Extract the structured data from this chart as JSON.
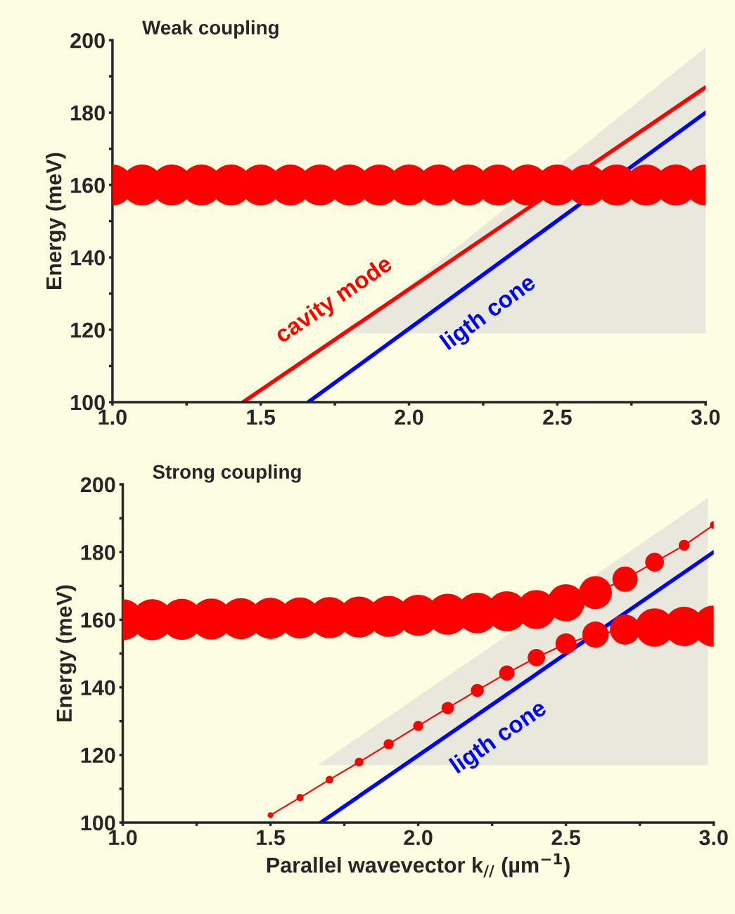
{
  "chart_data": [
    {
      "type": "scatter",
      "title": "Weak coupling",
      "ylabel": "Energy (meV)",
      "xlim": [
        1.0,
        3.0
      ],
      "ylim": [
        100,
        200
      ],
      "xticks": [
        {
          "value": 1.0,
          "label": "1.0"
        },
        {
          "value": 1.25,
          "label": null
        },
        {
          "value": 1.5,
          "label": "1.5"
        },
        {
          "value": 1.75,
          "label": null
        },
        {
          "value": 2.0,
          "label": "2.0"
        },
        {
          "value": 2.25,
          "label": null
        },
        {
          "value": 2.5,
          "label": "2.5"
        },
        {
          "value": 2.75,
          "label": null
        },
        {
          "value": 3.0,
          "label": "3.0"
        }
      ],
      "yticks": [
        100,
        {
          "value": 110,
          "label": null
        },
        120,
        {
          "value": 130,
          "label": null
        },
        140,
        {
          "value": 150,
          "label": null
        },
        160,
        {
          "value": 170,
          "label": null
        },
        180,
        {
          "value": 190,
          "label": null
        },
        200
      ],
      "grid": false,
      "series": [
        {
          "type": "area",
          "color": "#e8e8dc",
          "x": [
            1.8,
            3.0,
            3.0
          ],
          "values": [
            119,
            198,
            119
          ]
        },
        {
          "type": "line",
          "color": "#ff0000",
          "x": [
            1.44,
            3.0
          ],
          "values": [
            100,
            187
          ]
        },
        {
          "type": "line",
          "color": "#0000ff",
          "x": [
            1.66,
            3.0
          ],
          "values": [
            100,
            180
          ]
        },
        {
          "marker": "circle",
          "color": "#ff0000",
          "x": [
            1.0,
            1.1,
            1.2,
            1.3,
            1.4,
            1.5,
            1.6,
            1.7,
            1.8,
            1.9,
            2.0,
            2.1,
            2.2,
            2.3,
            2.4,
            2.5,
            2.6,
            2.7,
            2.8,
            2.9,
            3.0
          ],
          "values": [
            160,
            160,
            160,
            160,
            160,
            160,
            160,
            160,
            160,
            160,
            160,
            160,
            160,
            160,
            160,
            160,
            160,
            160,
            160,
            160,
            160
          ]
        }
      ],
      "annotations": [
        "cavity mode",
        "ligth cone"
      ]
    },
    {
      "type": "line",
      "title": "Strong coupling",
      "ylabel": "Energy (meV)",
      "xlabel": "Parallel wavevector k$_{//}$ (µm$^{−1}$)",
      "xlim": [
        1.0,
        3.0
      ],
      "ylim": [
        100,
        200
      ],
      "xticks": [
        {
          "value": 1.0,
          "label": "1.0"
        },
        {
          "value": 1.25,
          "label": null
        },
        {
          "value": 1.5,
          "label": "1.5"
        },
        {
          "value": 1.75,
          "label": null
        },
        {
          "value": 2.0,
          "label": "2.0"
        },
        {
          "value": 2.25,
          "label": null
        },
        {
          "value": 2.5,
          "label": "2.5"
        },
        {
          "value": 2.75,
          "label": null
        },
        {
          "value": 3.0,
          "label": "3.0"
        }
      ],
      "yticks": [
        100,
        {
          "value": 110,
          "label": null
        },
        120,
        {
          "value": 130,
          "label": null
        },
        140,
        {
          "value": 150,
          "label": null
        },
        160,
        {
          "value": 170,
          "label": null
        },
        180,
        {
          "value": 190,
          "label": null
        },
        200
      ],
      "grid": false,
      "series": [
        {
          "type": "area",
          "color": "#e8e8dc",
          "x": [
            1.66,
            2.98,
            2.98
          ],
          "values": [
            117,
            196,
            117
          ]
        },
        {
          "color": "#0000ff",
          "x": [
            1.67,
            3.0
          ],
          "values": [
            100,
            180
          ]
        },
        {
          "type": "line",
          "color": "#ff0000",
          "x": [
            1.0,
            1.1,
            1.2,
            1.3,
            1.4,
            1.5,
            1.6,
            1.7,
            1.8,
            1.9,
            2.0,
            2.1,
            2.2,
            2.3,
            2.4,
            2.5,
            2.6,
            2.7,
            2.8,
            2.9,
            3.0
          ],
          "values": [
            160,
            160,
            160.1,
            160.2,
            160.3,
            160.4,
            160.5,
            160.6,
            160.8,
            161,
            161.3,
            161.6,
            162,
            162.5,
            163,
            165,
            168,
            172,
            177,
            182,
            188
          ]
        },
        {
          "type": "line",
          "color": "#ff0000",
          "x": [
            1.5,
            1.6,
            1.7,
            1.8,
            1.9,
            2.0,
            2.1,
            2.2,
            2.3,
            2.4,
            2.5,
            2.6,
            2.7,
            2.8,
            2.9,
            3.0
          ],
          "values": [
            102.2,
            107.4,
            112.7,
            117.9,
            123.2,
            128.6,
            133.9,
            139.1,
            144.2,
            148.8,
            152.9,
            155.6,
            157.1,
            157.7,
            158,
            158.1
          ]
        },
        {
          "type": "bubble",
          "marker": "circle",
          "color": "#ff0000",
          "x": [
            1.0,
            1.1,
            1.2,
            1.3,
            1.4,
            1.5,
            1.6,
            1.7,
            1.8,
            1.9,
            2.0,
            2.1,
            2.2,
            2.3,
            2.4,
            2.5,
            2.6,
            2.7,
            2.8,
            2.9,
            3.0
          ],
          "values": [
            160,
            160,
            160.1,
            160.2,
            160.3,
            160.4,
            160.5,
            160.6,
            160.8,
            161,
            161.3,
            161.6,
            162,
            162.5,
            163,
            165,
            168,
            172,
            177,
            182,
            188
          ],
          "sizes": [
            1,
            1,
            1,
            1,
            1,
            1,
            1,
            1,
            1,
            1,
            1,
            1,
            0.98,
            0.95,
            0.9,
            0.82,
            0.64,
            0.38,
            0.21,
            0.07,
            0.035
          ]
        },
        {
          "type": "bubble",
          "marker": "circle",
          "color": "#ff0000",
          "x": [
            1.5,
            1.6,
            1.7,
            1.8,
            1.9,
            2.0,
            2.1,
            2.2,
            2.3,
            2.4,
            2.5,
            2.6,
            2.7,
            2.8,
            2.9,
            3.0
          ],
          "values": [
            102.2,
            107.4,
            112.7,
            117.9,
            123.2,
            128.6,
            133.9,
            139.1,
            144.2,
            148.8,
            152.9,
            155.6,
            157.1,
            157.7,
            158,
            158.1
          ],
          "sizes": [
            0.02,
            0.03,
            0.035,
            0.045,
            0.06,
            0.06,
            0.09,
            0.1,
            0.14,
            0.18,
            0.26,
            0.41,
            0.54,
            0.87,
            0.92,
            1
          ]
        }
      ],
      "annotations": [
        "ligth cone"
      ]
    }
  ]
}
